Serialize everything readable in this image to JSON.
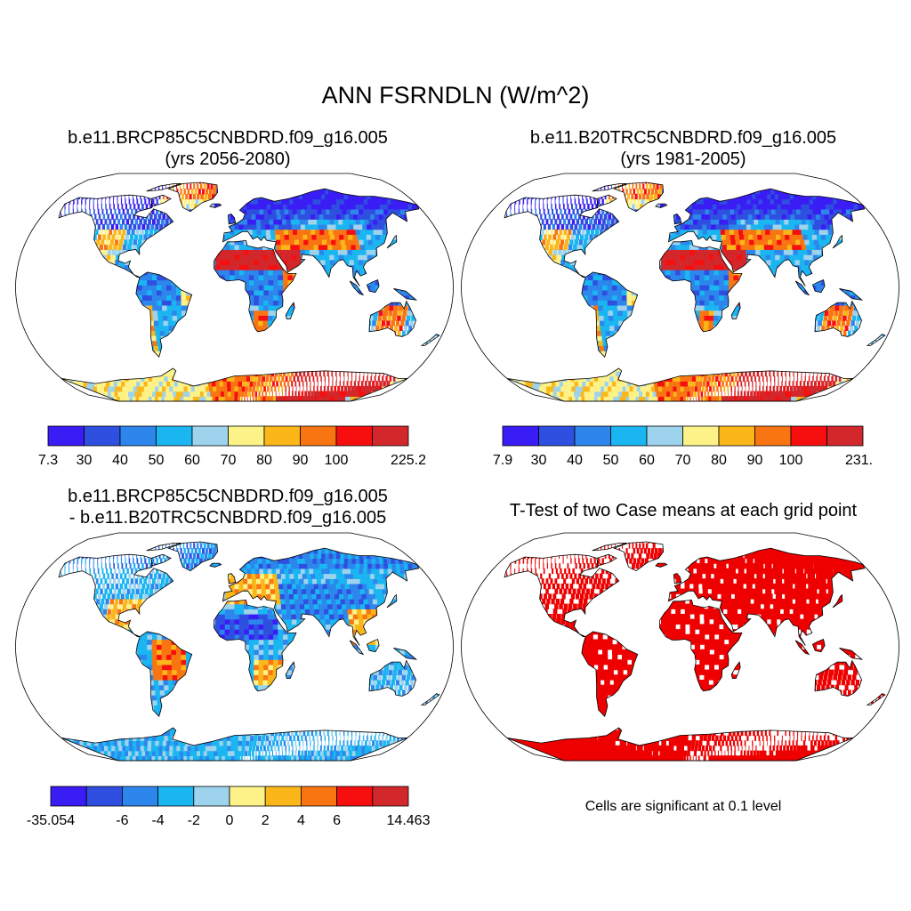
{
  "title": "ANN FSRNDLN (W/m^2)",
  "panels": [
    {
      "id": "test",
      "title_line1": "b.e11.BRCP85C5CNBDRD.f09_g16.005",
      "title_line2": "(yrs 2056-2080)",
      "colorbar_labels": [
        "7.3",
        "30",
        "40",
        "50",
        "60",
        "70",
        "80",
        "90",
        "100",
        "225.2"
      ]
    },
    {
      "id": "control",
      "title_line1": "b.e11.B20TRC5CNBDRD.f09_g16.005",
      "title_line2": "(yrs 1981-2005)",
      "colorbar_labels": [
        "7.9",
        "30",
        "40",
        "50",
        "60",
        "70",
        "80",
        "90",
        "100",
        "231.3"
      ]
    },
    {
      "id": "difference",
      "title_line1": "b.e11.BRCP85C5CNBDRD.f09_g16.005",
      "title_line2": "- b.e11.B20TRC5CNBDRD.f09_g16.005",
      "colorbar_labels": [
        "-35.054",
        "-6",
        "-4",
        "-2",
        "0",
        "2",
        "4",
        "6",
        "14.463"
      ]
    },
    {
      "id": "ttest",
      "title_line1": "T-Test of two Case means at each grid point",
      "note": "Cells are significant at 0.1 level"
    }
  ],
  "colors": {
    "palette": [
      "#3a1cf5",
      "#2e4fe0",
      "#2d86ec",
      "#1ab6f2",
      "#9ed3ee",
      "#fdf288",
      "#fbb71a",
      "#f97512",
      "#f70f0f",
      "#d2272b"
    ],
    "ocean": "#ffffff",
    "coast": "#000000",
    "significant": "#ef0000"
  }
}
